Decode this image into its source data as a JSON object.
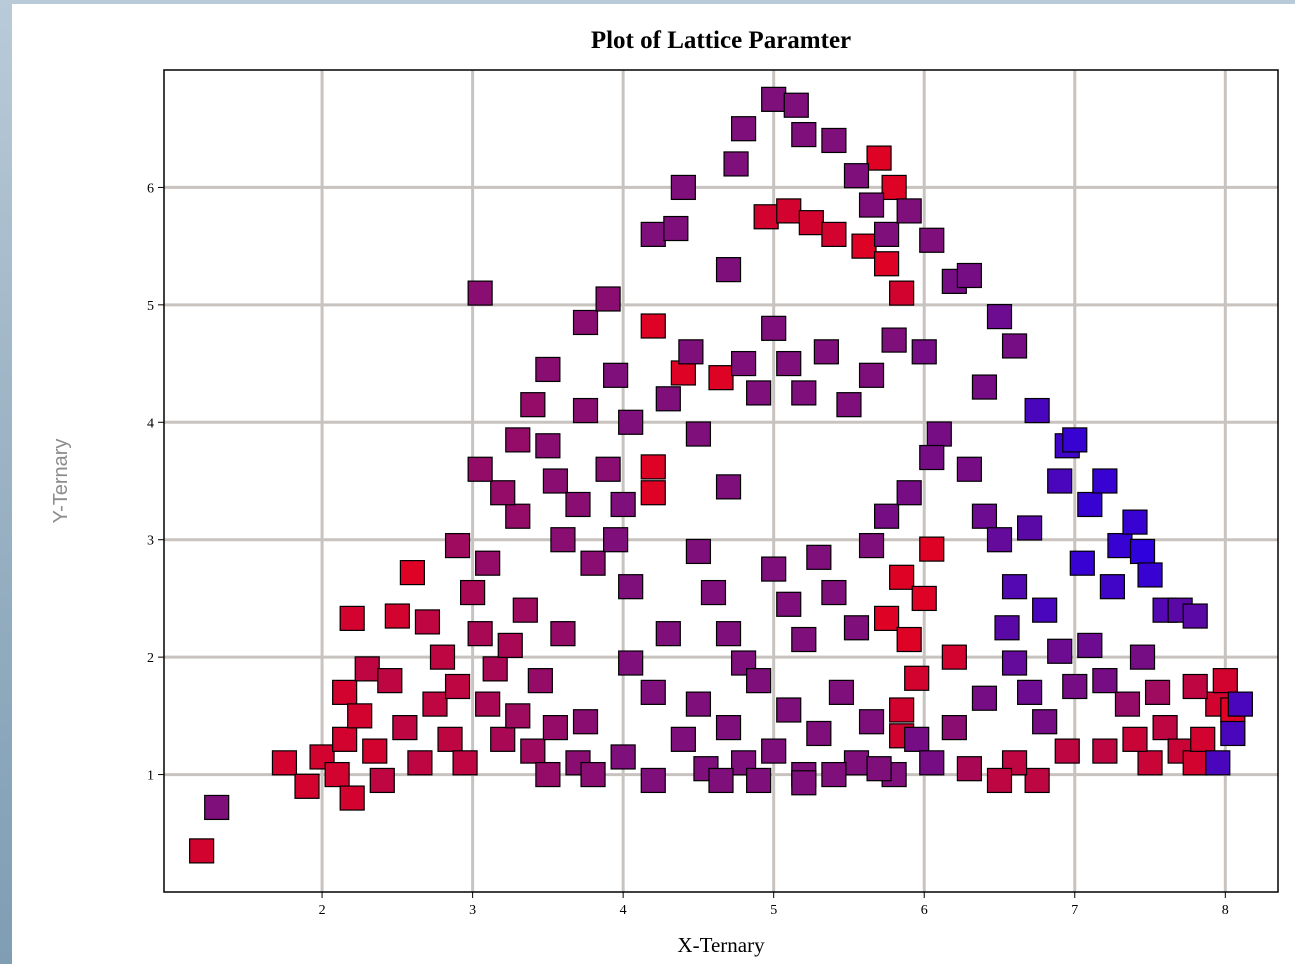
{
  "chart_data": {
    "type": "scatter",
    "title": "Plot of Lattice Paramter",
    "xlabel": "X-Ternary",
    "ylabel": "Y-Ternary",
    "xlim": [
      0.95,
      8.35
    ],
    "ylim": [
      0.0,
      7.0
    ],
    "xticks": [
      "2",
      "3",
      "4",
      "5",
      "6",
      "7",
      "8"
    ],
    "yticks": [
      "1",
      "2",
      "3",
      "4",
      "5",
      "6"
    ],
    "grid": true,
    "legend": "none",
    "marker": "square",
    "color_scale": {
      "low": "#e8001c",
      "mid": "#7f0f7a",
      "high": "#2600e8"
    },
    "series": [
      {
        "points": [
          [
            1.2,
            0.35,
            0.1
          ],
          [
            1.3,
            0.72,
            0.5
          ],
          [
            1.75,
            1.1,
            0.1
          ],
          [
            1.9,
            0.9,
            0.1
          ],
          [
            2.0,
            1.15,
            0.1
          ],
          [
            2.1,
            1.0,
            0.1
          ],
          [
            2.2,
            0.8,
            0.1
          ],
          [
            2.15,
            1.3,
            0.1
          ],
          [
            2.15,
            1.7,
            0.1
          ],
          [
            2.25,
            1.5,
            0.1
          ],
          [
            2.3,
            1.9,
            0.2
          ],
          [
            2.35,
            1.2,
            0.1
          ],
          [
            2.4,
            0.95,
            0.2
          ],
          [
            2.2,
            2.33,
            0.1
          ],
          [
            2.5,
            2.35,
            0.1
          ],
          [
            2.6,
            2.72,
            0.05
          ],
          [
            2.45,
            1.8,
            0.2
          ],
          [
            2.55,
            1.4,
            0.2
          ],
          [
            2.65,
            1.1,
            0.2
          ],
          [
            2.7,
            2.3,
            0.2
          ],
          [
            2.75,
            1.6,
            0.2
          ],
          [
            2.8,
            2.0,
            0.2
          ],
          [
            2.85,
            1.3,
            0.2
          ],
          [
            2.9,
            1.75,
            0.2
          ],
          [
            2.95,
            1.1,
            0.2
          ],
          [
            3.0,
            2.55,
            0.3
          ],
          [
            3.05,
            2.2,
            0.3
          ],
          [
            3.1,
            1.6,
            0.3
          ],
          [
            3.15,
            1.9,
            0.3
          ],
          [
            3.2,
            1.3,
            0.3
          ],
          [
            3.25,
            2.1,
            0.3
          ],
          [
            3.3,
            1.5,
            0.35
          ],
          [
            3.35,
            2.4,
            0.35
          ],
          [
            3.4,
            1.2,
            0.35
          ],
          [
            3.45,
            1.8,
            0.4
          ],
          [
            3.5,
            1.0,
            0.4
          ],
          [
            3.55,
            1.4,
            0.4
          ],
          [
            3.6,
            2.2,
            0.4
          ],
          [
            3.7,
            1.1,
            0.45
          ],
          [
            3.75,
            1.45,
            0.45
          ],
          [
            3.8,
            1.0,
            0.45
          ],
          [
            2.9,
            2.95,
            0.35
          ],
          [
            3.1,
            2.8,
            0.4
          ],
          [
            3.3,
            3.2,
            0.4
          ],
          [
            3.2,
            3.4,
            0.4
          ],
          [
            3.05,
            3.6,
            0.4
          ],
          [
            3.3,
            3.85,
            0.4
          ],
          [
            3.4,
            4.15,
            0.4
          ],
          [
            3.5,
            3.8,
            0.45
          ],
          [
            3.55,
            3.5,
            0.45
          ],
          [
            3.6,
            3.0,
            0.45
          ],
          [
            3.7,
            3.3,
            0.45
          ],
          [
            3.8,
            2.8,
            0.45
          ],
          [
            3.9,
            3.6,
            0.45
          ],
          [
            3.95,
            3.0,
            0.5
          ],
          [
            4.0,
            3.3,
            0.5
          ],
          [
            4.05,
            2.6,
            0.5
          ],
          [
            3.75,
            4.1,
            0.45
          ],
          [
            3.5,
            4.45,
            0.45
          ],
          [
            3.05,
            5.1,
            0.45
          ],
          [
            3.75,
            4.85,
            0.45
          ],
          [
            3.9,
            5.05,
            0.45
          ],
          [
            3.95,
            4.4,
            0.5
          ],
          [
            4.05,
            4.0,
            0.5
          ],
          [
            4.2,
            3.62,
            0.05
          ],
          [
            4.2,
            3.4,
            0.05
          ],
          [
            4.2,
            4.82,
            0.05
          ],
          [
            4.4,
            4.42,
            0.05
          ],
          [
            4.65,
            4.38,
            0.05
          ],
          [
            4.2,
            5.6,
            0.5
          ],
          [
            4.35,
            5.65,
            0.5
          ],
          [
            4.4,
            6.0,
            0.5
          ],
          [
            4.3,
            4.2,
            0.5
          ],
          [
            4.45,
            4.6,
            0.5
          ],
          [
            4.5,
            3.9,
            0.5
          ],
          [
            4.7,
            3.45,
            0.5
          ],
          [
            4.8,
            4.5,
            0.5
          ],
          [
            4.9,
            4.25,
            0.5
          ],
          [
            4.7,
            5.3,
            0.5
          ],
          [
            4.75,
            6.2,
            0.5
          ],
          [
            4.8,
            6.5,
            0.5
          ],
          [
            4.95,
            5.75,
            0.1
          ],
          [
            5.0,
            6.75,
            0.5
          ],
          [
            5.15,
            6.7,
            0.5
          ],
          [
            5.2,
            6.45,
            0.5
          ],
          [
            5.1,
            5.8,
            0.1
          ],
          [
            5.25,
            5.7,
            0.1
          ],
          [
            5.4,
            5.6,
            0.1
          ],
          [
            5.6,
            5.5,
            0.05
          ],
          [
            5.75,
            5.35,
            0.05
          ],
          [
            5.7,
            6.25,
            0.05
          ],
          [
            5.8,
            6.0,
            0.05
          ],
          [
            5.85,
            5.1,
            0.1
          ],
          [
            5.4,
            6.4,
            0.5
          ],
          [
            5.55,
            6.1,
            0.5
          ],
          [
            5.65,
            5.85,
            0.5
          ],
          [
            5.75,
            5.6,
            0.5
          ],
          [
            5.9,
            5.8,
            0.5
          ],
          [
            6.05,
            5.55,
            0.5
          ],
          [
            6.2,
            5.2,
            0.55
          ],
          [
            5.0,
            4.8,
            0.5
          ],
          [
            5.1,
            4.5,
            0.5
          ],
          [
            5.2,
            4.25,
            0.5
          ],
          [
            5.35,
            4.6,
            0.5
          ],
          [
            5.5,
            4.15,
            0.5
          ],
          [
            5.65,
            4.4,
            0.5
          ],
          [
            5.8,
            4.7,
            0.5
          ],
          [
            4.5,
            2.9,
            0.5
          ],
          [
            4.6,
            2.55,
            0.5
          ],
          [
            4.7,
            2.2,
            0.5
          ],
          [
            4.8,
            1.95,
            0.5
          ],
          [
            4.9,
            1.8,
            0.5
          ],
          [
            5.0,
            2.75,
            0.5
          ],
          [
            5.1,
            2.45,
            0.5
          ],
          [
            5.2,
            2.15,
            0.5
          ],
          [
            5.3,
            2.85,
            0.5
          ],
          [
            5.4,
            2.55,
            0.5
          ],
          [
            5.55,
            2.25,
            0.5
          ],
          [
            5.65,
            2.95,
            0.5
          ],
          [
            5.75,
            2.33,
            0.05
          ],
          [
            5.85,
            2.68,
            0.05
          ],
          [
            5.9,
            2.15,
            0.05
          ],
          [
            5.95,
            1.82,
            0.1
          ],
          [
            6.0,
            2.5,
            0.05
          ],
          [
            6.05,
            2.92,
            0.05
          ],
          [
            5.85,
            1.55,
            0.1
          ],
          [
            5.85,
            1.33,
            0.1
          ],
          [
            6.2,
            2.0,
            0.1
          ],
          [
            4.05,
            1.95,
            0.5
          ],
          [
            4.2,
            1.7,
            0.5
          ],
          [
            4.3,
            2.2,
            0.5
          ],
          [
            4.5,
            1.6,
            0.5
          ],
          [
            4.7,
            1.4,
            0.5
          ],
          [
            4.8,
            1.1,
            0.5
          ],
          [
            5.0,
            1.2,
            0.5
          ],
          [
            5.1,
            1.55,
            0.5
          ],
          [
            5.2,
            1.0,
            0.5
          ],
          [
            5.3,
            1.35,
            0.5
          ],
          [
            5.45,
            1.7,
            0.5
          ],
          [
            5.55,
            1.1,
            0.5
          ],
          [
            5.65,
            1.45,
            0.5
          ],
          [
            5.8,
            1.0,
            0.5
          ],
          [
            5.95,
            1.3,
            0.55
          ],
          [
            6.05,
            1.1,
            0.55
          ],
          [
            4.0,
            1.15,
            0.5
          ],
          [
            4.2,
            0.95,
            0.5
          ],
          [
            4.4,
            1.3,
            0.5
          ],
          [
            4.55,
            1.05,
            0.5
          ],
          [
            4.65,
            0.95,
            0.5
          ],
          [
            4.9,
            0.95,
            0.5
          ],
          [
            5.2,
            0.93,
            0.5
          ],
          [
            5.4,
            1.0,
            0.5
          ],
          [
            5.7,
            1.05,
            0.5
          ],
          [
            6.3,
            3.6,
            0.55
          ],
          [
            6.4,
            3.2,
            0.6
          ],
          [
            6.5,
            3.0,
            0.65
          ],
          [
            6.6,
            2.6,
            0.75
          ],
          [
            6.7,
            3.1,
            0.7
          ],
          [
            6.75,
            4.1,
            0.8
          ],
          [
            6.8,
            2.4,
            0.8
          ],
          [
            6.9,
            3.5,
            0.8
          ],
          [
            6.95,
            3.8,
            0.85
          ],
          [
            7.0,
            3.85,
            0.9
          ],
          [
            7.05,
            2.8,
            0.9
          ],
          [
            7.1,
            3.3,
            0.9
          ],
          [
            7.2,
            3.5,
            0.9
          ],
          [
            7.25,
            2.6,
            0.85
          ],
          [
            7.3,
            2.95,
            0.9
          ],
          [
            7.4,
            3.15,
            0.9
          ],
          [
            7.45,
            2.9,
            0.95
          ],
          [
            7.5,
            2.7,
            0.9
          ],
          [
            7.6,
            2.4,
            0.75
          ],
          [
            7.7,
            2.4,
            0.7
          ],
          [
            7.8,
            2.35,
            0.7
          ],
          [
            6.55,
            2.25,
            0.7
          ],
          [
            6.6,
            1.95,
            0.65
          ],
          [
            6.7,
            1.7,
            0.6
          ],
          [
            6.8,
            1.45,
            0.55
          ],
          [
            6.9,
            2.05,
            0.6
          ],
          [
            7.0,
            1.75,
            0.55
          ],
          [
            7.1,
            2.1,
            0.6
          ],
          [
            7.2,
            1.8,
            0.55
          ],
          [
            7.35,
            1.6,
            0.4
          ],
          [
            7.45,
            2.0,
            0.55
          ],
          [
            7.55,
            1.7,
            0.35
          ],
          [
            7.6,
            1.4,
            0.2
          ],
          [
            7.7,
            1.2,
            0.15
          ],
          [
            7.8,
            1.1,
            0.1
          ],
          [
            7.85,
            1.3,
            0.1
          ],
          [
            7.95,
            1.6,
            0.1
          ],
          [
            8.0,
            1.8,
            0.1
          ],
          [
            8.05,
            1.55,
            0.05
          ],
          [
            8.1,
            1.6,
            0.8
          ],
          [
            8.05,
            1.35,
            0.8
          ],
          [
            7.95,
            1.1,
            0.8
          ],
          [
            7.8,
            1.75,
            0.2
          ],
          [
            7.5,
            1.1,
            0.15
          ],
          [
            7.4,
            1.3,
            0.15
          ],
          [
            7.2,
            1.2,
            0.2
          ],
          [
            6.95,
            1.2,
            0.2
          ],
          [
            6.75,
            0.95,
            0.2
          ],
          [
            6.6,
            1.1,
            0.2
          ],
          [
            6.5,
            0.95,
            0.2
          ],
          [
            6.3,
            1.05,
            0.3
          ],
          [
            6.2,
            1.4,
            0.45
          ],
          [
            6.4,
            1.65,
            0.55
          ],
          [
            6.6,
            4.65,
            0.55
          ],
          [
            6.4,
            4.3,
            0.55
          ],
          [
            6.5,
            4.9,
            0.6
          ],
          [
            6.3,
            5.25,
            0.55
          ],
          [
            6.1,
            3.9,
            0.55
          ],
          [
            6.0,
            4.6,
            0.55
          ],
          [
            5.75,
            3.2,
            0.55
          ],
          [
            5.9,
            3.4,
            0.55
          ],
          [
            6.05,
            3.7,
            0.55
          ]
        ]
      }
    ]
  }
}
